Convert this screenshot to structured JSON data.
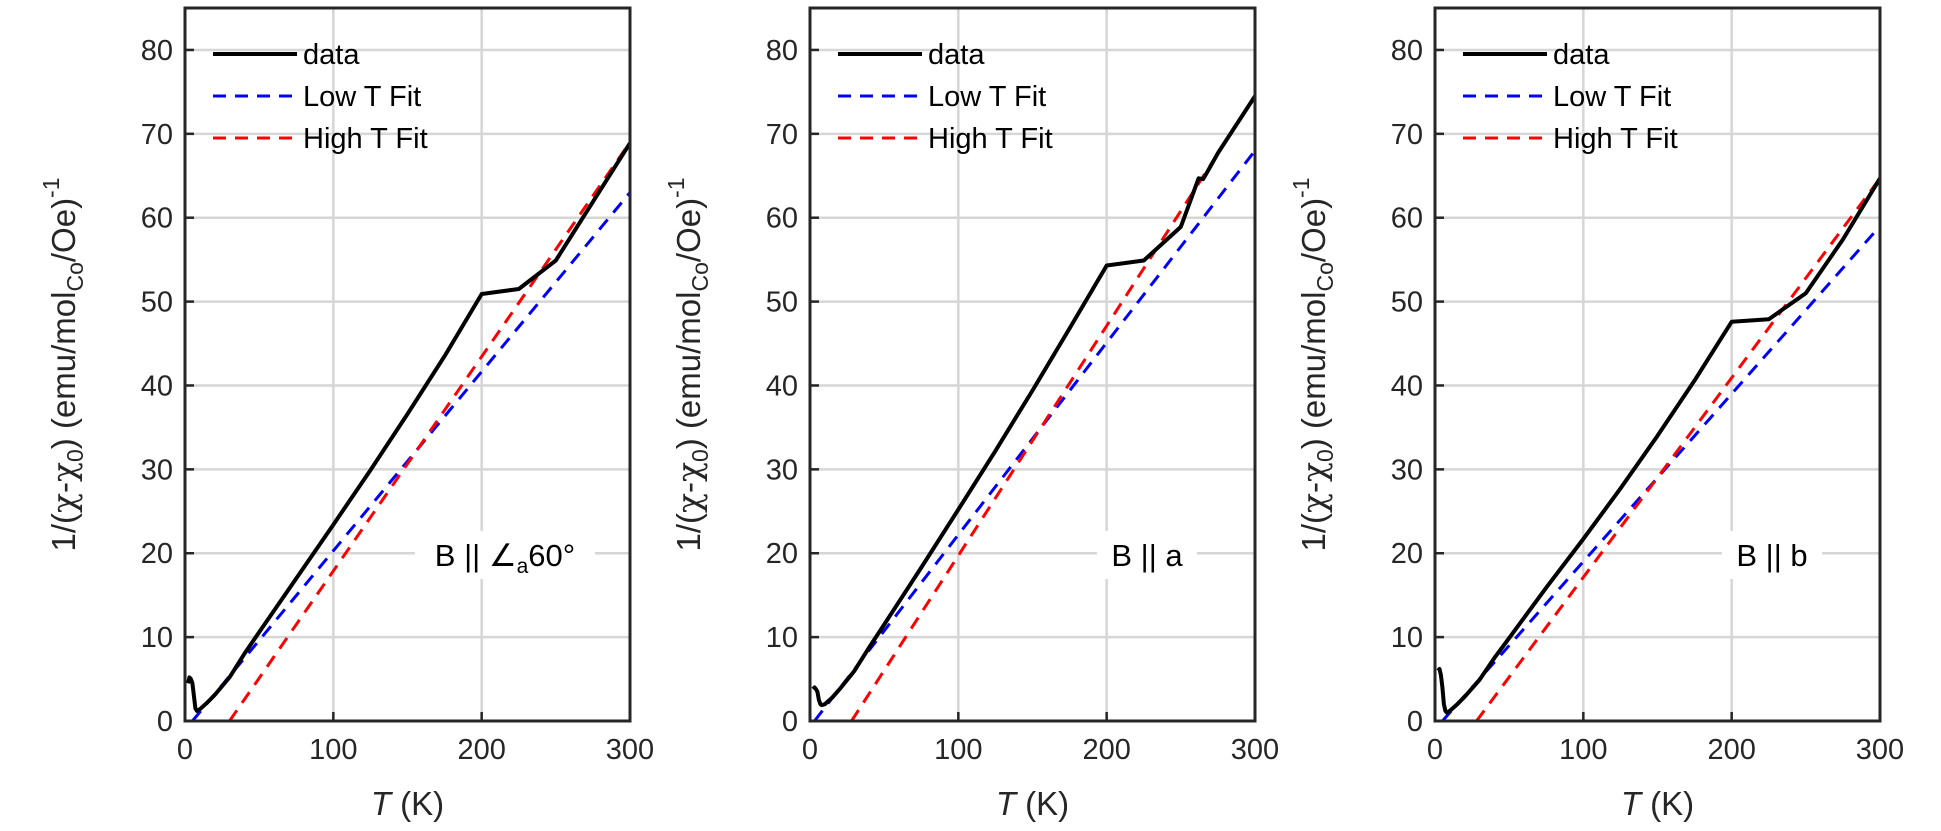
{
  "figure": {
    "colors": {
      "data": "#000000",
      "low_fit": "#0000ff",
      "high_fit": "#ff0000",
      "grid": "#d6d6d6",
      "axis": "#262626"
    }
  },
  "chart_data": [
    {
      "type": "line",
      "annotation": "B || ∠a60°",
      "xlabel": "T (K)",
      "ylabel": "1/(χ-χ0) (emu/molCo/Oe)-1",
      "xlim": [
        0,
        300
      ],
      "ylim": [
        0,
        85
      ],
      "xticks": [
        0,
        100,
        200,
        300
      ],
      "yticks": [
        0,
        10,
        20,
        30,
        40,
        50,
        60,
        70,
        80
      ],
      "grid": true,
      "legend": "top-left",
      "series": [
        {
          "name": "data",
          "style": "solid",
          "color": "#000000",
          "x": [
            2,
            3,
            4,
            5,
            6,
            7,
            8,
            10,
            15,
            20,
            30,
            40,
            50,
            75,
            100,
            125,
            150,
            175,
            200,
            225,
            250,
            275,
            300
          ],
          "y": [
            4.5,
            5.2,
            5.0,
            4.5,
            3.0,
            1.5,
            1.2,
            1.4,
            2.2,
            3.1,
            5.2,
            8.0,
            10.6,
            17.0,
            23.4,
            29.9,
            36.6,
            43.5,
            50.9,
            51.5,
            54.9,
            61.9,
            68.9
          ]
        },
        {
          "name": "Low T Fit",
          "style": "dashed",
          "color": "#0000ff",
          "x": [
            5,
            300
          ],
          "y": [
            0,
            63
          ]
        },
        {
          "name": "High T Fit",
          "style": "dashed",
          "color": "#ff0000",
          "x": [
            30,
            300
          ],
          "y": [
            0,
            69
          ]
        }
      ]
    },
    {
      "type": "line",
      "annotation": "B || a",
      "xlabel": "T (K)",
      "ylabel": "1/(χ-χ0) (emu/molCo/Oe)-1",
      "xlim": [
        0,
        300
      ],
      "ylim": [
        0,
        85
      ],
      "xticks": [
        0,
        100,
        200,
        300
      ],
      "yticks": [
        0,
        10,
        20,
        30,
        40,
        50,
        60,
        70,
        80
      ],
      "grid": true,
      "legend": "top-left",
      "series": [
        {
          "name": "data",
          "style": "solid",
          "color": "#000000",
          "x": [
            2,
            3,
            4,
            5,
            6,
            7,
            8,
            10,
            15,
            20,
            30,
            40,
            50,
            75,
            100,
            125,
            150,
            175,
            200,
            225,
            250,
            262,
            265,
            268,
            275,
            300
          ],
          "y": [
            3.8,
            4.0,
            3.8,
            3.5,
            2.5,
            2.0,
            1.9,
            2.0,
            2.8,
            3.8,
            6.0,
            8.8,
            11.5,
            18.3,
            25.2,
            32.2,
            39.4,
            46.8,
            54.3,
            54.9,
            58.9,
            64.7,
            64.6,
            65.5,
            67.7,
            74.5
          ]
        },
        {
          "name": "Low T Fit",
          "style": "dashed",
          "color": "#0000ff",
          "x": [
            3,
            300
          ],
          "y": [
            0,
            68
          ]
        },
        {
          "name": "High T Fit",
          "style": "dashed",
          "color": "#ff0000",
          "x": [
            28,
            300
          ],
          "y": [
            0,
            74.5
          ]
        }
      ]
    },
    {
      "type": "line",
      "annotation": "B || b",
      "xlabel": "T (K)",
      "ylabel": "1/(χ-χ0) (emu/molCo/Oe)-1",
      "xlim": [
        0,
        300
      ],
      "ylim": [
        0,
        85
      ],
      "xticks": [
        0,
        100,
        200,
        300
      ],
      "yticks": [
        0,
        10,
        20,
        30,
        40,
        50,
        60,
        70,
        80
      ],
      "grid": true,
      "legend": "top-left",
      "series": [
        {
          "name": "data",
          "style": "solid",
          "color": "#000000",
          "x": [
            2,
            3,
            4,
            5,
            6,
            7,
            8,
            10,
            15,
            20,
            30,
            40,
            50,
            75,
            100,
            125,
            150,
            175,
            200,
            225,
            250,
            275,
            300
          ],
          "y": [
            6.0,
            6.2,
            5.5,
            4.0,
            2.0,
            1.2,
            1.0,
            1.2,
            2.0,
            2.9,
            4.9,
            7.5,
            9.9,
            15.9,
            21.7,
            27.7,
            34.0,
            40.6,
            47.6,
            47.9,
            51.0,
            57.4,
            64.7
          ]
        },
        {
          "name": "Low T Fit",
          "style": "dashed",
          "color": "#0000ff",
          "x": [
            5,
            300
          ],
          "y": [
            0,
            59
          ]
        },
        {
          "name": "High T Fit",
          "style": "dashed",
          "color": "#ff0000",
          "x": [
            28,
            300
          ],
          "y": [
            0,
            64.7
          ]
        }
      ]
    }
  ]
}
